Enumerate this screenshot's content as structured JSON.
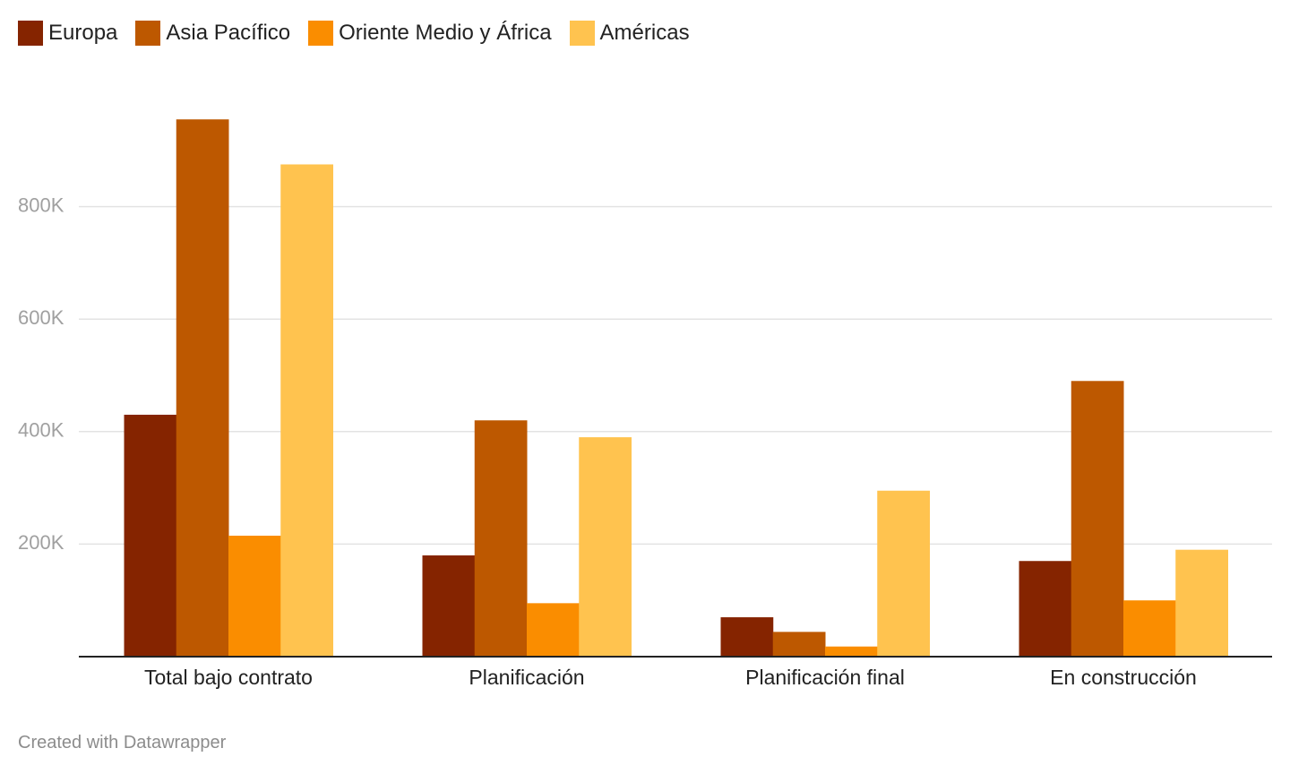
{
  "chart_data": {
    "type": "bar",
    "categories": [
      "Total bajo contrato",
      "Planificación",
      "Planificación final",
      "En construcción"
    ],
    "series": [
      {
        "name": "Europa",
        "color": "#852400",
        "values": [
          430000,
          180000,
          70000,
          170000
        ]
      },
      {
        "name": "Asia Pacífico",
        "color": "#bd5800",
        "values": [
          955000,
          420000,
          44000,
          490000
        ]
      },
      {
        "name": "Oriente Medio y África",
        "color": "#fa8d00",
        "values": [
          215000,
          95000,
          18000,
          100000
        ]
      },
      {
        "name": "Américas",
        "color": "#ffc34f",
        "values": [
          875000,
          390000,
          295000,
          190000
        ]
      }
    ],
    "yticks": [
      {
        "value": 200000,
        "label": "200K"
      },
      {
        "value": 400000,
        "label": "400K"
      },
      {
        "value": 600000,
        "label": "600K"
      },
      {
        "value": 800000,
        "label": "800K"
      }
    ],
    "ylim": [
      0,
      1000000
    ],
    "grid": true,
    "legend_position": "top-left"
  },
  "credit": "Created with Datawrapper"
}
